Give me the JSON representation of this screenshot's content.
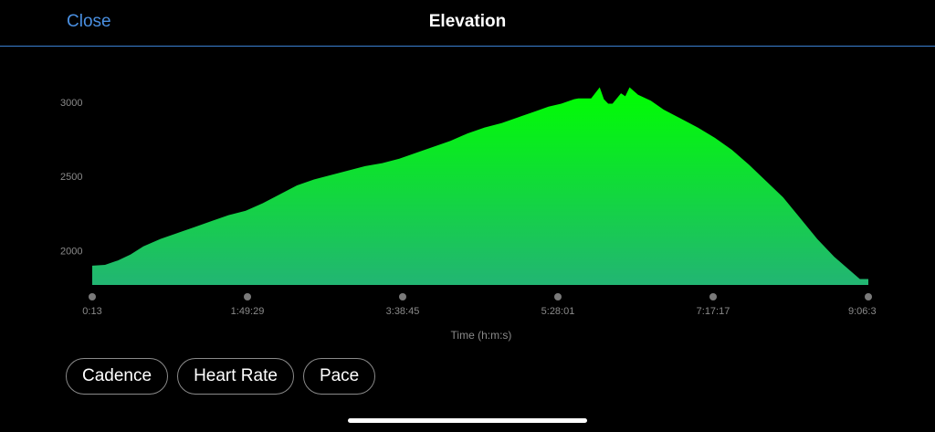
{
  "header": {
    "close_label": "Close",
    "title": "Elevation"
  },
  "chips": [
    {
      "label": "Cadence"
    },
    {
      "label": "Heart Rate"
    },
    {
      "label": "Pace"
    }
  ],
  "colors": {
    "accent": "#4a90e2",
    "fill_top": "#00ff00",
    "fill_bottom": "#22b573",
    "axis_text": "#8a8a8a"
  },
  "chart_data": {
    "type": "area",
    "title": "Elevation",
    "xlabel": "Time (h:m:s)",
    "ylabel": "",
    "x_tick_labels": [
      "0:13",
      "1:49:29",
      "3:38:45",
      "5:28:01",
      "7:17:17",
      "9:06:3"
    ],
    "y_tick_labels": [
      "2000",
      "2500",
      "3000"
    ],
    "y_ticks": [
      2000,
      2500,
      3000
    ],
    "ylim": [
      1770,
      3110
    ],
    "grid": false,
    "series": [
      {
        "x_hours": [
          0.0,
          0.15,
          0.3,
          0.45,
          0.6,
          0.8,
          1.0,
          1.2,
          1.4,
          1.6,
          1.8,
          2.0,
          2.2,
          2.4,
          2.6,
          2.8,
          3.0,
          3.2,
          3.4,
          3.6,
          3.8,
          4.0,
          4.2,
          4.4,
          4.6,
          4.8,
          5.0,
          5.2,
          5.35,
          5.5,
          5.65,
          5.7,
          5.85,
          5.95,
          6.0,
          6.05,
          6.1,
          6.2,
          6.25,
          6.3,
          6.4,
          6.55,
          6.7,
          6.9,
          7.1,
          7.3,
          7.5,
          7.7,
          7.9,
          8.1,
          8.3,
          8.5,
          8.7,
          8.9,
          9.0,
          9.1
        ],
        "elevation": [
          1900,
          1905,
          1935,
          1975,
          2030,
          2080,
          2120,
          2160,
          2200,
          2240,
          2270,
          2320,
          2380,
          2440,
          2480,
          2510,
          2540,
          2570,
          2590,
          2620,
          2660,
          2700,
          2740,
          2790,
          2830,
          2860,
          2900,
          2940,
          2970,
          2990,
          3020,
          3025,
          3025,
          3100,
          3020,
          2990,
          2990,
          3060,
          3040,
          3100,
          3050,
          3010,
          2950,
          2890,
          2830,
          2760,
          2680,
          2580,
          2470,
          2360,
          2220,
          2080,
          1960,
          1860,
          1810,
          1810
        ]
      }
    ]
  }
}
